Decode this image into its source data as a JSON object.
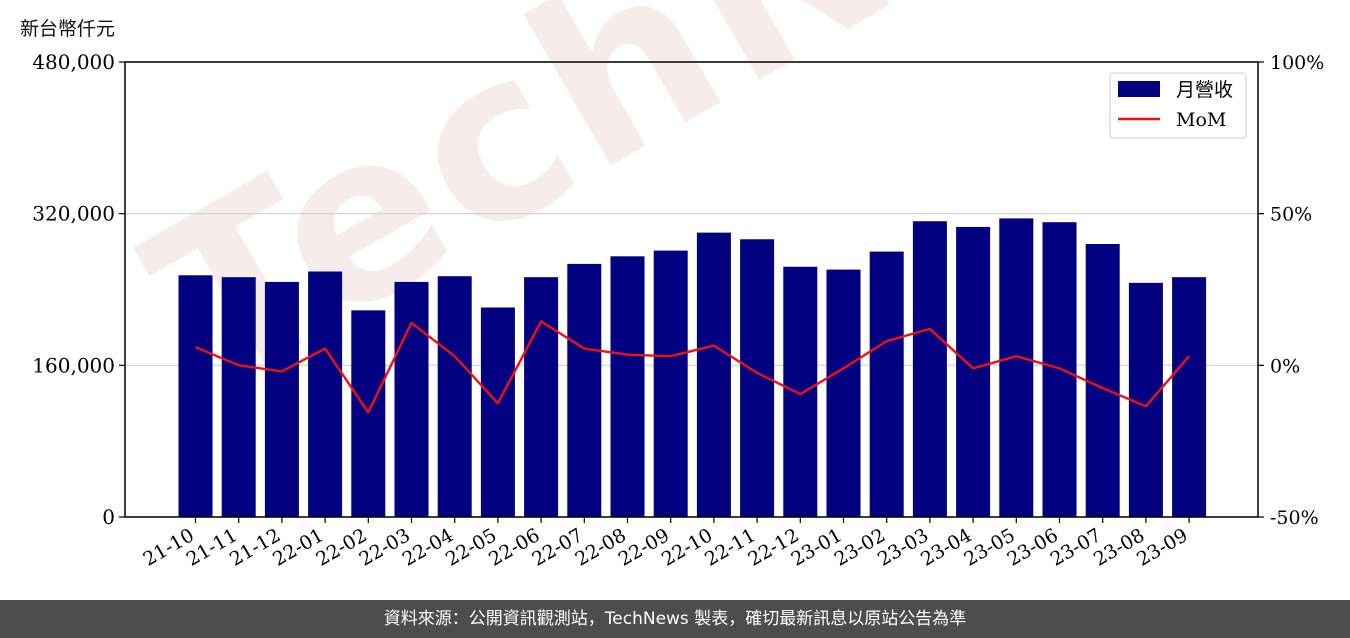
{
  "unit_label": "新台幣仟元",
  "footer": "資料來源：公開資訊觀測站，TechNews 製表，確切最新訊息以原站公告為準",
  "watermark": "TechNews",
  "colors": {
    "bar": "#000080",
    "line": "#ee1111",
    "grid": "#d0d0d0",
    "footer_bg": "#4d4d4d"
  },
  "chart_data": {
    "type": "bar",
    "categories": [
      "21-10",
      "21-11",
      "21-12",
      "22-01",
      "22-02",
      "22-03",
      "22-04",
      "22-05",
      "22-06",
      "22-07",
      "22-08",
      "22-09",
      "22-10",
      "22-11",
      "22-12",
      "23-01",
      "23-02",
      "23-03",
      "23-04",
      "23-05",
      "23-06",
      "23-07",
      "23-08",
      "23-09"
    ],
    "series": [
      {
        "name": "月營收",
        "type": "bar",
        "axis": "left",
        "values": [
          255000,
          253000,
          248000,
          259000,
          218000,
          248000,
          254000,
          221000,
          253000,
          267000,
          275000,
          281000,
          300000,
          293000,
          264000,
          261000,
          280000,
          312000,
          306000,
          315000,
          311000,
          288000,
          247000,
          253000
        ]
      },
      {
        "name": "MoM",
        "type": "line",
        "axis": "right",
        "values": [
          6,
          0,
          -2,
          5.5,
          -15.5,
          14,
          3,
          -12.5,
          14.5,
          5.5,
          3.5,
          3,
          6.5,
          -2.5,
          -9.5,
          -1,
          8,
          12,
          -1,
          3,
          -1,
          -7.5,
          -13.5,
          3
        ]
      }
    ],
    "y_left": {
      "ylim": [
        0,
        480000
      ],
      "ticks": [
        "0",
        "160,000",
        "320,000",
        "480,000"
      ]
    },
    "y_right": {
      "ylim": [
        -50,
        100
      ],
      "ticks": [
        "-50%",
        "0%",
        "50%",
        "100%"
      ]
    },
    "grid": true,
    "legend_position": "top-right"
  }
}
